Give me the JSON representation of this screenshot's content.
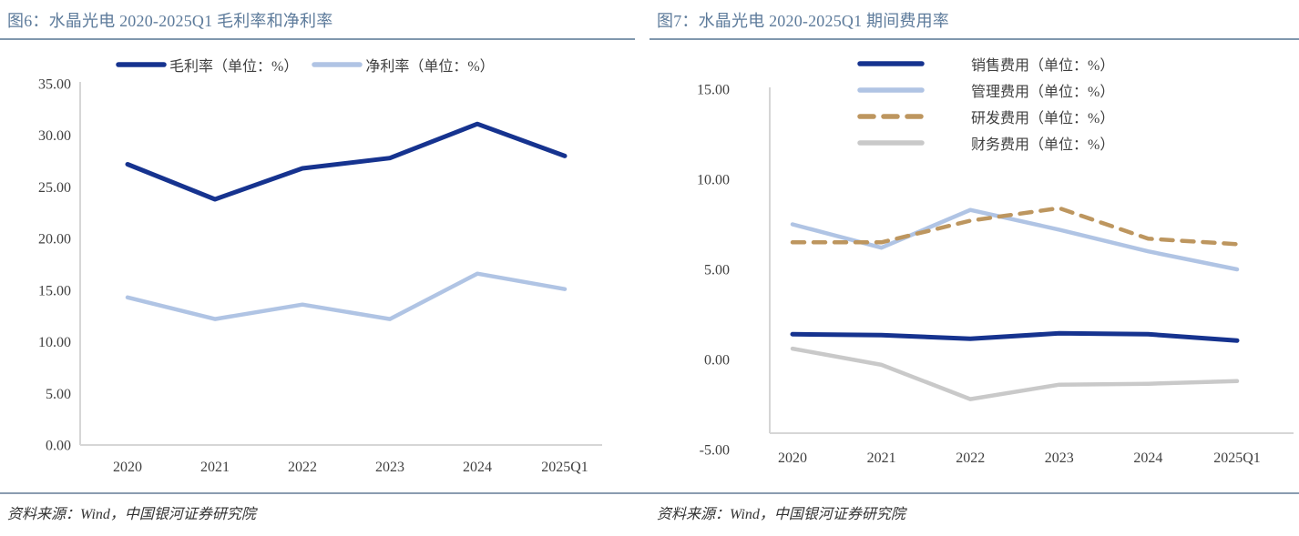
{
  "colors": {
    "title": "#5d7b9b",
    "title_underline": "#8097ad",
    "source_rule": "#8a9cb0",
    "axis_line": "#d6d6d6",
    "tick_text": "#404040",
    "series_navy": "#16338f",
    "series_lightblue": "#b0c4e4",
    "series_tan": "#bd965f",
    "series_gray": "#c9c9c9"
  },
  "chart_data": [
    {
      "type": "line",
      "title": "图6：水晶光电 2020-2025Q1 毛利率和净利率",
      "source": "资料来源：Wind，中国银河证券研究院",
      "categories": [
        "2020",
        "2021",
        "2022",
        "2023",
        "2024",
        "2025Q1"
      ],
      "series": [
        {
          "name": "毛利率（单位：%）",
          "values": [
            27.2,
            23.8,
            26.8,
            27.8,
            31.1,
            28.0
          ],
          "color": "#16338f",
          "dash": null,
          "width": 5
        },
        {
          "name": "净利率（单位：%）",
          "values": [
            14.3,
            12.2,
            13.6,
            12.2,
            16.6,
            15.1
          ],
          "color": "#b0c4e4",
          "dash": null,
          "width": 4.5
        }
      ],
      "ylim": [
        0,
        35
      ],
      "yticks": [
        35,
        30,
        25,
        20,
        15,
        10,
        5,
        0
      ],
      "ytick_labels": [
        "35.00",
        "30.00",
        "25.00",
        "20.00",
        "15.00",
        "10.00",
        "5.00",
        "0.00"
      ],
      "grid": false,
      "legend_position": "top-row"
    },
    {
      "type": "line",
      "title": "图7：水晶光电 2020-2025Q1 期间费用率",
      "source": "资料来源：Wind，中国银河证券研究院",
      "categories": [
        "2020",
        "2021",
        "2022",
        "2023",
        "2024",
        "2025Q1"
      ],
      "series": [
        {
          "name": "销售费用（单位：%）",
          "values": [
            1.4,
            1.35,
            1.15,
            1.45,
            1.4,
            1.05
          ],
          "color": "#16338f",
          "dash": null,
          "width": 5
        },
        {
          "name": "管理费用（单位：%）",
          "values": [
            7.5,
            6.2,
            8.3,
            7.2,
            6.0,
            5.0
          ],
          "color": "#b0c4e4",
          "dash": null,
          "width": 4.5
        },
        {
          "name": "研发费用（单位：%）",
          "values": [
            6.5,
            6.5,
            7.7,
            8.4,
            6.7,
            6.4
          ],
          "color": "#bd965f",
          "dash": "13 10",
          "width": 4.5
        },
        {
          "name": "财务费用（单位：%）",
          "values": [
            0.6,
            -0.3,
            -2.2,
            -1.4,
            -1.35,
            -1.2
          ],
          "color": "#c9c9c9",
          "dash": null,
          "width": 4.5
        }
      ],
      "ylim": [
        -5,
        15
      ],
      "yticks": [
        15,
        10,
        5,
        0,
        -5
      ],
      "ytick_labels": [
        "15.00",
        "10.00",
        "5.00",
        "0.00",
        "-5.00"
      ],
      "grid": false,
      "legend_position": "top-column"
    }
  ]
}
